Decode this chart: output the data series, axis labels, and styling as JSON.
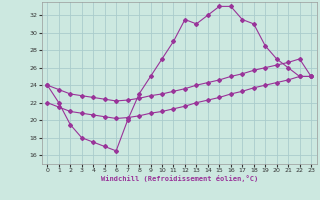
{
  "xlabel": "Windchill (Refroidissement éolien,°C)",
  "bg_color": "#cce8e0",
  "grid_color": "#aacccc",
  "line_color": "#993399",
  "xlim": [
    -0.5,
    23.5
  ],
  "ylim": [
    15,
    33.5
  ],
  "yticks": [
    16,
    18,
    20,
    22,
    24,
    26,
    28,
    30,
    32
  ],
  "xticks": [
    0,
    1,
    2,
    3,
    4,
    5,
    6,
    7,
    8,
    9,
    10,
    11,
    12,
    13,
    14,
    15,
    16,
    17,
    18,
    19,
    20,
    21,
    22,
    23
  ],
  "series": [
    {
      "x": [
        0,
        1,
        2,
        3,
        4,
        5,
        6,
        7,
        8,
        9,
        10,
        11,
        12,
        13,
        14,
        15,
        16,
        17,
        18,
        19,
        20,
        21,
        22,
        23
      ],
      "y": [
        24,
        22,
        19.5,
        18,
        17.5,
        17,
        16.5,
        20,
        23,
        25,
        27,
        29,
        31.5,
        31,
        32,
        33,
        33,
        31.5,
        31,
        28.5,
        27,
        26,
        25,
        25
      ]
    },
    {
      "x": [
        0,
        1,
        2,
        3,
        4,
        5,
        6,
        7,
        8,
        9,
        10,
        11,
        12,
        13,
        14,
        15,
        16,
        17,
        18,
        19,
        20,
        21,
        22,
        23
      ],
      "y": [
        22,
        21.5,
        21,
        20.8,
        20.6,
        20.4,
        20.2,
        20.3,
        20.5,
        20.8,
        21,
        21.3,
        21.6,
        22,
        22.3,
        22.6,
        23,
        23.3,
        23.7,
        24,
        24.3,
        24.6,
        25,
        25
      ]
    },
    {
      "x": [
        0,
        1,
        2,
        3,
        4,
        5,
        6,
        7,
        8,
        9,
        10,
        11,
        12,
        13,
        14,
        15,
        16,
        17,
        18,
        19,
        20,
        21,
        22,
        23
      ],
      "y": [
        24,
        23.5,
        23,
        22.8,
        22.6,
        22.4,
        22.2,
        22.3,
        22.5,
        22.8,
        23,
        23.3,
        23.6,
        24,
        24.3,
        24.6,
        25,
        25.3,
        25.7,
        26,
        26.3,
        26.6,
        27,
        25
      ]
    }
  ]
}
